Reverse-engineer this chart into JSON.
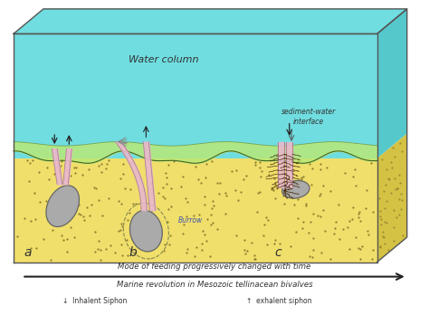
{
  "bg_color": "#ffffff",
  "water_color": "#70dde0",
  "water_top_color": "#55c8cc",
  "sediment_color": "#f0df6a",
  "sediment_dark": "#d4c245",
  "sediment_dot_color": "#7a6a20",
  "green_band_color": "#b8e878",
  "box_edge_color": "#555555",
  "water_label": "Water column",
  "interface_label": "sediment-water\ninterface",
  "burrow_label": "Burrow",
  "label_a": "a",
  "label_b": "b",
  "label_c": "c",
  "shell_color": "#aaaaaa",
  "shell_edge": "#666666",
  "siphon_fill": "#e8b8cc",
  "siphon_edge": "#b08090",
  "tentacle_color": "#4a3010",
  "arrow_color": "#222222",
  "title1": "Mode of feeding progressively changed with time",
  "title2": "Marine revolution in Mesozoic tellinacean bivalves",
  "legend1": "↓  Inhalent Siphon",
  "legend2": "↑  exhalent siphon",
  "text_color": "#333333"
}
